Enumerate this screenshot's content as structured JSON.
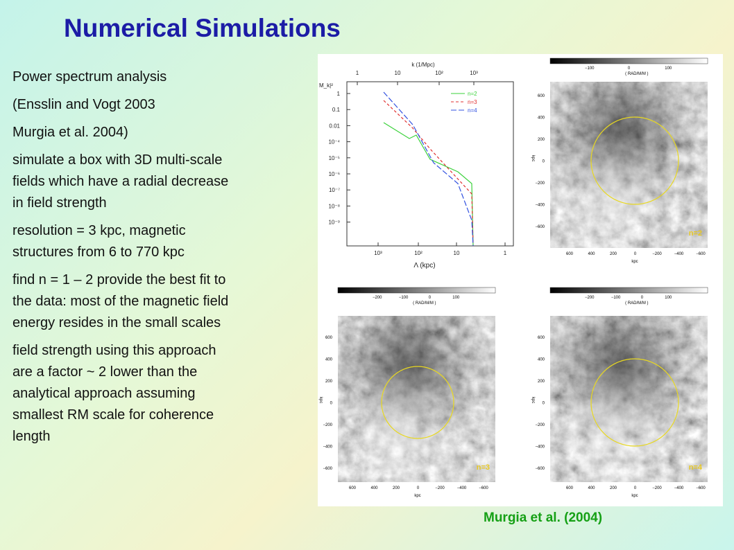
{
  "title": "Numerical Simulations",
  "paragraphs": [
    [
      "Power spectrum analysis"
    ],
    [
      "(Ensslin and Vogt 2003"
    ],
    [
      "Murgia et al. 2004)"
    ],
    [
      "simulate a box with 3D multi-scale",
      "fields which have a radial decrease",
      "in field strength"
    ],
    [
      "resolution = 3 kpc, magnetic",
      "structures from 6 to 770 kpc"
    ],
    [
      "find n = 1 – 2 provide the best fit to",
      "the data: most of the magnetic field",
      "energy resides in the small scales"
    ],
    [
      "field strength using this approach",
      "are a factor ~ 2 lower than the",
      "analytical approach assuming",
      "smallest RM scale for coherence",
      "length"
    ]
  ],
  "caption": "Murgia et al. (2004)",
  "spectrum": {
    "top_axis_label": "k (1/Mpc)",
    "top_ticks": [
      "1",
      "10",
      "10²",
      "10³"
    ],
    "bottom_axis_label": "Λ (kpc)",
    "bottom_ticks": [
      "10³",
      "10²",
      "10",
      "1"
    ],
    "y_axis_label": "M_k|²",
    "y_ticks": [
      "1",
      "0.1",
      "0.01",
      "10⁻⁴",
      "10⁻⁵",
      "10⁻⁶",
      "10⁻⁷",
      "10⁻⁸",
      "10⁻⁹"
    ],
    "legend": [
      "n=2",
      "n=3",
      "n=4"
    ]
  },
  "maps": {
    "colorbar_unit": "( RAD/M/M )",
    "axis_unit": "kpc",
    "y_axis_unit": "kpc",
    "y_ticks": [
      "600",
      "400",
      "200",
      "0",
      "−200",
      "−400",
      "−600"
    ],
    "x_ticks": [
      "600",
      "400",
      "200",
      "0",
      "−200",
      "−400",
      "−600"
    ],
    "panels": [
      {
        "label": "n=2",
        "colorbar_ticks": [
          "−100",
          "0",
          "100"
        ]
      },
      {
        "label": "n=3",
        "colorbar_ticks": [
          "−200",
          "−100",
          "0",
          "100"
        ]
      },
      {
        "label": "n=4",
        "colorbar_ticks": [
          "−200",
          "−100",
          "0",
          "100"
        ]
      }
    ]
  }
}
